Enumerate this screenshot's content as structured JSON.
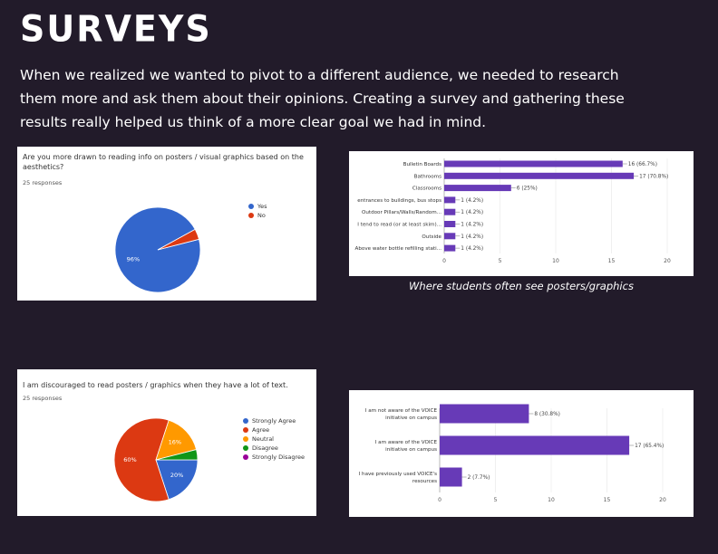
{
  "page": {
    "title": "SURVEYS",
    "intro": "When we realized we wanted to pivot to a different audience, we needed to research them more and ask them about their opinions. Creating a survey and gathering these results really helped us think of a more clear goal we had in mind.",
    "caption": "Where students often see posters/graphics"
  },
  "colors": {
    "background": "#221b2a",
    "bar": "#673ab7",
    "blue": "#3366cc",
    "red": "#dc3912",
    "orange": "#ff9900",
    "green": "#109618",
    "purple": "#990099"
  },
  "chart_data": [
    {
      "type": "pie",
      "question": "Are you more drawn to reading info on posters / visual graphics based on the aesthetics?",
      "responses": "25 responses",
      "categories": [
        "Yes",
        "No"
      ],
      "values": [
        96,
        4
      ],
      "slice_labels": [
        "96%",
        ""
      ],
      "colors": [
        "#3366cc",
        "#dc3912"
      ]
    },
    {
      "type": "bar",
      "orientation": "horizontal",
      "categories": [
        "Bulletin Boards",
        "Bathrooms",
        "Classrooms",
        "entrances to buildings, bus stops",
        "Outdoor Pillars/Walls/Random...",
        "I tend to read (or at least skim)...",
        "Outside",
        "Above water bottle refilling stati..."
      ],
      "values": [
        16,
        17,
        6,
        1,
        1,
        1,
        1,
        1
      ],
      "data_labels": [
        "16 (66.7%)",
        "17 (70.8%)",
        "6 (25%)",
        "1 (4.2%)",
        "1 (4.2%)",
        "1 (4.2%)",
        "1 (4.2%)",
        "1 (4.2%)"
      ],
      "xlim": [
        0,
        20
      ],
      "xticks": [
        "0",
        "5",
        "10",
        "15",
        "20"
      ],
      "caption": "Where students often see posters/graphics"
    },
    {
      "type": "pie",
      "question": "I am discouraged to read posters / graphics when they have a lot of text.",
      "responses": "25 responses",
      "categories": [
        "Strongly Agree",
        "Agree",
        "Neutral",
        "Disagree",
        "Strongly Disagree"
      ],
      "values": [
        20,
        60,
        16,
        4,
        0
      ],
      "slice_labels": [
        "20%",
        "60%",
        "16%",
        "",
        ""
      ],
      "colors": [
        "#3366cc",
        "#dc3912",
        "#ff9900",
        "#109618",
        "#990099"
      ]
    },
    {
      "type": "bar",
      "orientation": "horizontal",
      "categories": [
        "I am not aware of the VOICE initiative on campus",
        "I am aware of the VOICE initiative on campus",
        "I have previously used VOICE's resources"
      ],
      "category_lines": [
        [
          "I am not aware of the VOICE",
          "initiative on campus"
        ],
        [
          "I am aware of the VOICE",
          "initiative on campus"
        ],
        [
          "I have previously used VOICE's",
          "resources"
        ]
      ],
      "values": [
        8,
        17,
        2
      ],
      "data_labels": [
        "8 (30.8%)",
        "17 (65.4%)",
        "2 (7.7%)"
      ],
      "xlim": [
        0,
        20
      ],
      "xticks": [
        "0",
        "5",
        "10",
        "15",
        "20"
      ]
    }
  ]
}
